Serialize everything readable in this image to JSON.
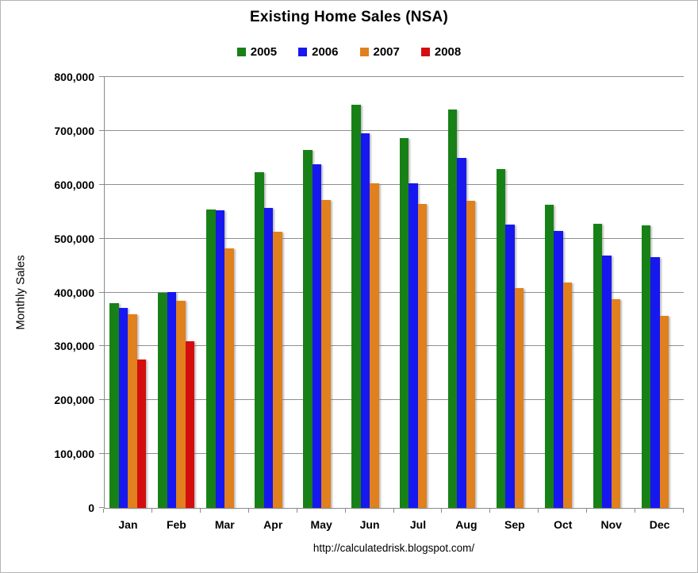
{
  "page": {
    "footer": "http://calculatedrisk.blogspot.com/"
  },
  "chart_data": {
    "type": "bar",
    "title": "Existing Home Sales (NSA)",
    "xlabel": "",
    "ylabel": "Monthly Sales",
    "ylim": [
      0,
      800000
    ],
    "ytick_step": 100000,
    "yticks": [
      {
        "value": 0,
        "label": "0"
      },
      {
        "value": 100000,
        "label": "100,000"
      },
      {
        "value": 200000,
        "label": "200,000"
      },
      {
        "value": 300000,
        "label": "300,000"
      },
      {
        "value": 400000,
        "label": "400,000"
      },
      {
        "value": 500000,
        "label": "500,000"
      },
      {
        "value": 600000,
        "label": "600,000"
      },
      {
        "value": 700000,
        "label": "700,000"
      },
      {
        "value": 800000,
        "label": "800,000"
      }
    ],
    "grid": "horizontal",
    "legend_position": "top",
    "categories": [
      "Jan",
      "Feb",
      "Mar",
      "Apr",
      "May",
      "Jun",
      "Jul",
      "Aug",
      "Sep",
      "Oct",
      "Nov",
      "Dec"
    ],
    "series": [
      {
        "name": "2005",
        "color": "#178117",
        "values": [
          380000,
          399000,
          554000,
          623000,
          665000,
          749000,
          686000,
          739000,
          629000,
          563000,
          528000,
          525000
        ]
      },
      {
        "name": "2006",
        "color": "#1717ef",
        "values": [
          372000,
          401000,
          552000,
          557000,
          638000,
          696000,
          602000,
          650000,
          526000,
          514000,
          469000,
          466000
        ]
      },
      {
        "name": "2007",
        "color": "#e0801e",
        "values": [
          359000,
          385000,
          482000,
          512000,
          572000,
          602000,
          565000,
          570000,
          408000,
          418000,
          387000,
          357000
        ]
      },
      {
        "name": "2008",
        "color": "#d40e0e",
        "values": [
          275000,
          309000,
          null,
          null,
          null,
          null,
          null,
          null,
          null,
          null,
          null,
          null
        ]
      }
    ],
    "colors": {
      "gridline": "#8f8f8f",
      "axis": "#8a8a8a",
      "text": "#000000",
      "background": "#ffffff",
      "frame_border": "#b5b5b5"
    }
  }
}
